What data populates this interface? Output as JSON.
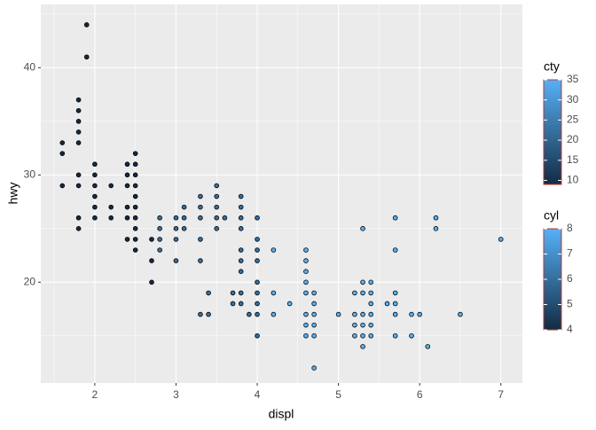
{
  "chart_data": {
    "type": "scatter",
    "x_label": "displ",
    "y_label": "hwy",
    "xlim": [
      1.335,
      7.265
    ],
    "ylim": [
      10.6,
      45.9
    ],
    "xticks": [
      2,
      3,
      4,
      5,
      6,
      7
    ],
    "yticks": [
      20,
      30,
      40
    ],
    "grid": true,
    "x": [
      1.6,
      1.6,
      1.6,
      1.8,
      1.8,
      1.8,
      1.8,
      1.8,
      1.8,
      1.8,
      1.8,
      1.8,
      1.9,
      1.9,
      2,
      2,
      2,
      2,
      2,
      2,
      2.2,
      2.2,
      2.2,
      2.4,
      2.4,
      2.4,
      2.4,
      2.4,
      2.4,
      2.5,
      2.5,
      2.5,
      2.5,
      2.5,
      2.5,
      2.5,
      2.5,
      2.5,
      2.5,
      2.7,
      2.7,
      2.7,
      2.8,
      2.8,
      2.8,
      2.8,
      3,
      3,
      3,
      3,
      3.1,
      3.1,
      3.1,
      3.3,
      3.3,
      3.3,
      3.3,
      3.3,
      3.3,
      3.4,
      3.4,
      3.5,
      3.5,
      3.5,
      3.5,
      3.5,
      3.6,
      3.7,
      3.7,
      3.8,
      3.8,
      3.8,
      3.8,
      3.8,
      3.8,
      3.8,
      3.8,
      3.8,
      3.9,
      4,
      4,
      4,
      4,
      4,
      4,
      4,
      4,
      4,
      4.2,
      4.2,
      4.2,
      4.4,
      4.6,
      4.6,
      4.6,
      4.6,
      4.6,
      4.6,
      4.6,
      4.6,
      4.7,
      4.7,
      4.7,
      4.7,
      4.7,
      4.7,
      5,
      5.2,
      5.2,
      5.2,
      5.2,
      5.3,
      5.3,
      5.3,
      5.3,
      5.3,
      5.3,
      5.3,
      5.4,
      5.4,
      5.4,
      5.4,
      5.4,
      5.4,
      5.6,
      5.7,
      5.7,
      5.7,
      5.7,
      5.7,
      5.7,
      5.9,
      5.9,
      6,
      6.1,
      6.2,
      6.2,
      6.5,
      7
    ],
    "values": [
      33,
      32,
      29,
      37,
      36,
      35,
      34,
      33,
      30,
      29,
      26,
      25,
      44,
      41,
      31,
      30,
      29,
      28,
      27,
      26,
      29,
      27,
      26,
      31,
      30,
      29,
      27,
      26,
      24,
      32,
      31,
      30,
      29,
      28,
      27,
      26,
      25,
      24,
      23,
      24,
      22,
      20,
      26,
      25,
      24,
      23,
      26,
      25,
      24,
      22,
      27,
      26,
      25,
      28,
      27,
      26,
      24,
      22,
      17,
      19,
      17,
      29,
      28,
      27,
      26,
      25,
      26,
      19,
      18,
      28,
      27,
      26,
      25,
      23,
      22,
      21,
      19,
      18,
      17,
      26,
      24,
      23,
      22,
      20,
      19,
      18,
      17,
      15,
      23,
      19,
      17,
      18,
      23,
      22,
      21,
      20,
      19,
      17,
      16,
      15,
      19,
      18,
      17,
      16,
      15,
      12,
      17,
      19,
      17,
      16,
      15,
      25,
      20,
      19,
      17,
      16,
      15,
      14,
      20,
      19,
      18,
      17,
      16,
      15,
      18,
      26,
      23,
      19,
      18,
      17,
      15,
      17,
      15,
      17,
      14,
      26,
      25,
      17,
      24
    ],
    "cyl": [
      4,
      4,
      4,
      4,
      4,
      4,
      4,
      4,
      4,
      4,
      4,
      4,
      4,
      4,
      4,
      4,
      4,
      4,
      4,
      4,
      4,
      4,
      4,
      4,
      4,
      4,
      4,
      4,
      4,
      4,
      4,
      4,
      4,
      4,
      4,
      4,
      4,
      4,
      4,
      4,
      4,
      4,
      6,
      6,
      6,
      6,
      6,
      6,
      6,
      6,
      6,
      6,
      6,
      6,
      6,
      6,
      6,
      6,
      6,
      6,
      6,
      6,
      6,
      6,
      6,
      6,
      6,
      6,
      6,
      6,
      6,
      6,
      6,
      6,
      6,
      6,
      6,
      6,
      6,
      6,
      6,
      6,
      6,
      6,
      6,
      6,
      6,
      6,
      8,
      8,
      8,
      8,
      8,
      8,
      8,
      8,
      8,
      8,
      8,
      8,
      8,
      8,
      8,
      8,
      8,
      8,
      8,
      8,
      8,
      8,
      8,
      8,
      8,
      8,
      8,
      8,
      8,
      8,
      8,
      8,
      8,
      8,
      8,
      8,
      8,
      8,
      8,
      8,
      8,
      8,
      8,
      8,
      8,
      8,
      8,
      8,
      8,
      8,
      8
    ],
    "legends": [
      {
        "title": "cty",
        "lim": [
          9,
          35
        ],
        "ticks": [
          10,
          15,
          20,
          25,
          30,
          35
        ],
        "colors": [
          "#132B43",
          "#56B1F7"
        ]
      },
      {
        "title": "cyl",
        "lim": [
          4,
          8
        ],
        "ticks": [
          4,
          5,
          6,
          7,
          8
        ],
        "colors": [
          "#132B43",
          "#56B1F7"
        ]
      }
    ]
  }
}
